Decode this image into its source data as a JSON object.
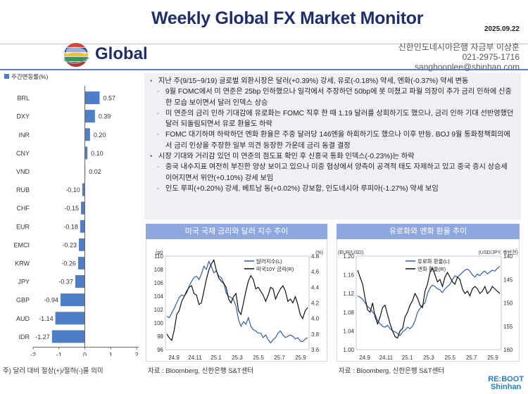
{
  "header": {
    "title": "Weekly Global FX Market Monitor",
    "date": "2025.09.22",
    "email": "sanghoonlee@shinhan.com"
  },
  "section": {
    "title": "Global",
    "author_line1": "신한인도네시아은행 자금부 이상훈",
    "author_line2": "021-2975-1716",
    "author_line3": "sanghoonlee@shinhan.com"
  },
  "bullets": [
    {
      "level": 1,
      "marker": "•",
      "text": "지난 주(9/15~9/19) 글로벌 외환시장은 달러(+0.39%) 강세, 유로(-0.18%) 약세, 엔화(-0.37%) 약세 변동"
    },
    {
      "level": 2,
      "marker": "-",
      "text": "9월 FOMC에서 미 연준은 25bp 인하했으나 일각에서 주장하던 50bp에 못 미쳤고 파월 의장이 추가 금리 인하에 신중한 모습 보이면서 달러 인덱스 상승"
    },
    {
      "level": 2,
      "marker": "-",
      "text": "미 연준의 금리 인하 기대감에 유로화는 FOMC 직후 한 때 1.19 달러를 상회하기도 했으나, 금리 인하 기대 선반영했던 달러 되돌림되면서 유로 환율도 하락"
    },
    {
      "level": 2,
      "marker": "-",
      "text": "FOMC 대기하며 하락하던 엔화 환율은 주중 달러당 146엔을 하회하기도 했으나 이후 반등. BOJ 9월 통화정책회의에서 금리 인상을 주장한 일부 의견 등장한 가운데 금리 동결 결정"
    },
    {
      "level": 1,
      "marker": "•",
      "text": "시장 기대와 거리감 있던 미 연준의 점도표 확인 후 신흥국 통화 인덱스(-0.23%)는 하락"
    },
    {
      "level": 2,
      "marker": "-",
      "text": "중국 내수지표 여전히 부진한 양상 보이고 있으나 미중 협상에서 양측이 공격적 태도 자제하고 있고 중국 증시 상승세 이어지면서 위안(+0.10%) 강세 보임"
    },
    {
      "level": 2,
      "marker": "-",
      "text": "인도 루피(+0.20%) 강세, 베트남 동(+0.02%) 강보합, 인도네시아 루피아(-1.27%) 약세 보임"
    }
  ],
  "footnote": "주) 달러 대비 절상(+)/절하(-)를 의미",
  "panel1": {
    "title": "미국 국채 금리와 달러 지수 추이",
    "source": "자료 : Bloomberg, 신한은행 S&T센터"
  },
  "panel2": {
    "title": "유로화와 엔화 환율 추이",
    "source": "자료 : Bloomberg, 신한은행 S&T센터"
  },
  "logo": {
    "line1": "RE:BOOT",
    "line2": "Shinhan"
  },
  "chart_data": [
    {
      "type": "bar",
      "orientation": "horizontal",
      "legend": "주간변동률(%)",
      "categories": [
        "BRL",
        "DXY",
        "INR",
        "CNY",
        "VND",
        "RUB",
        "CHF",
        "EUR",
        "EMCI",
        "KRW",
        "JPY",
        "GBP",
        "AUD",
        "IDR"
      ],
      "values": [
        0.57,
        0.39,
        0.2,
        0.1,
        0.02,
        -0.1,
        -0.15,
        -0.18,
        -0.23,
        -0.26,
        -0.37,
        -0.94,
        -1.14,
        -1.27
      ],
      "labels": [
        "0.57",
        "0.39",
        "0.20",
        "0.10",
        "0.02",
        "-0.10",
        "-0.15",
        "-0.18",
        "-0.23",
        "-0.26",
        "-0.37",
        "-0.94",
        "-1.14",
        "-1.27"
      ],
      "xlim": [
        -2,
        2
      ],
      "xticks": [
        -2,
        -1,
        0,
        1,
        2
      ],
      "color": "#4f7ec9"
    },
    {
      "type": "line",
      "x_ticks": [
        "24.9",
        "24.11",
        "25.1",
        "25.3",
        "25.5",
        "25.7",
        "25.9"
      ],
      "left_unit": "(pt)",
      "right_unit": "(%)",
      "left_ylim": [
        96,
        110
      ],
      "left_ticks": [
        96,
        98,
        100,
        102,
        104,
        106,
        108,
        110
      ],
      "right_ylim": [
        3.6,
        4.8
      ],
      "right_ticks": [
        "3.6",
        "3.8",
        "4.0",
        "4.2",
        "4.4",
        "4.6",
        "4.8"
      ],
      "series": [
        {
          "name": "달러지수(L)",
          "axis": "left",
          "color": "#2f5cb8",
          "values": [
            101.0,
            100.8,
            101.5,
            102.2,
            103.0,
            103.8,
            104.2,
            104.0,
            104.5,
            105.5,
            106.2,
            106.8,
            107.0,
            106.5,
            107.3,
            108.5,
            108.0,
            109.2,
            108.5,
            107.5,
            107.8,
            107.0,
            106.8,
            106.0,
            104.5,
            104.0,
            103.8,
            103.5,
            102.5,
            100.5,
            99.5,
            100.2,
            99.8,
            100.8,
            99.5,
            99.0,
            98.8,
            98.5,
            98.5,
            97.8,
            98.2,
            97.5,
            97.0,
            97.5,
            97.8,
            98.5,
            98.8,
            98.2,
            97.8,
            98.0,
            98.2,
            98.0,
            97.6,
            97.8,
            97.3,
            97.2,
            97.6,
            97.8
          ]
        },
        {
          "name": "미국10Y 금리(R)",
          "axis": "right",
          "color": "#111111",
          "values": [
            3.8,
            3.75,
            3.72,
            3.85,
            4.05,
            4.1,
            4.22,
            4.28,
            4.35,
            4.4,
            4.42,
            4.32,
            4.3,
            4.18,
            4.2,
            4.35,
            4.5,
            4.62,
            4.7,
            4.75,
            4.62,
            4.52,
            4.48,
            4.45,
            4.4,
            4.25,
            4.2,
            4.28,
            4.32,
            4.1,
            4.05,
            4.2,
            4.35,
            4.48,
            4.55,
            4.5,
            4.38,
            4.4,
            4.35,
            4.3,
            4.22,
            4.3,
            4.4,
            4.38,
            4.25,
            4.32,
            4.38,
            4.42,
            4.35,
            4.22,
            4.25,
            4.2,
            4.28,
            4.18,
            4.05,
            4.0,
            4.1,
            4.14
          ]
        }
      ]
    },
    {
      "type": "line",
      "x_ticks": [
        "24.9",
        "24.11",
        "25.1",
        "25.3",
        "25.5",
        "25.7",
        "25.9"
      ],
      "left_unit": "(EUR/USD)",
      "right_unit": "(USD/JPY, 축반전)",
      "left_ylim": [
        1.0,
        1.2
      ],
      "left_ticks": [
        "1.00",
        "1.04",
        "1.08",
        "1.12",
        "1.16",
        "1.20"
      ],
      "right_ylim": [
        160,
        140
      ],
      "right_ticks": [
        "140",
        "145",
        "150",
        "155",
        "160"
      ],
      "series": [
        {
          "name": "유로화 환율(L)",
          "axis": "left",
          "color": "#2f5cb8",
          "values": [
            1.115,
            1.112,
            1.108,
            1.1,
            1.092,
            1.088,
            1.08,
            1.075,
            1.062,
            1.055,
            1.05,
            1.048,
            1.052,
            1.045,
            1.04,
            1.038,
            1.035,
            1.03,
            1.038,
            1.042,
            1.048,
            1.045,
            1.05,
            1.062,
            1.08,
            1.088,
            1.095,
            1.1,
            1.12,
            1.132,
            1.138,
            1.135,
            1.13,
            1.128,
            1.122,
            1.13,
            1.135,
            1.14,
            1.15,
            1.158,
            1.155,
            1.16,
            1.165,
            1.17,
            1.172,
            1.168,
            1.16,
            1.155,
            1.162,
            1.158,
            1.165,
            1.168,
            1.162,
            1.166,
            1.17,
            1.168,
            1.174,
            1.178
          ]
        },
        {
          "name": "엔화 환율(R)",
          "axis": "right",
          "color": "#111111",
          "values": [
            143.0,
            144.5,
            146.0,
            149.0,
            151.5,
            152.0,
            150.0,
            153.0,
            154.5,
            153.0,
            151.0,
            150.5,
            152.5,
            154.5,
            156.0,
            157.2,
            157.5,
            156.0,
            155.5,
            153.0,
            152.0,
            150.5,
            149.5,
            148.0,
            149.0,
            150.5,
            151.0,
            147.5,
            146.0,
            143.5,
            142.5,
            144.0,
            145.5,
            145.0,
            146.5,
            144.5,
            143.5,
            144.5,
            145.5,
            146.0,
            144.5,
            145.0,
            147.0,
            148.0,
            147.5,
            148.5,
            147.0,
            146.5,
            147.0,
            148.0,
            147.5,
            146.5,
            148.0,
            147.5,
            146.5,
            147.0,
            147.5,
            148.0
          ]
        }
      ]
    }
  ]
}
